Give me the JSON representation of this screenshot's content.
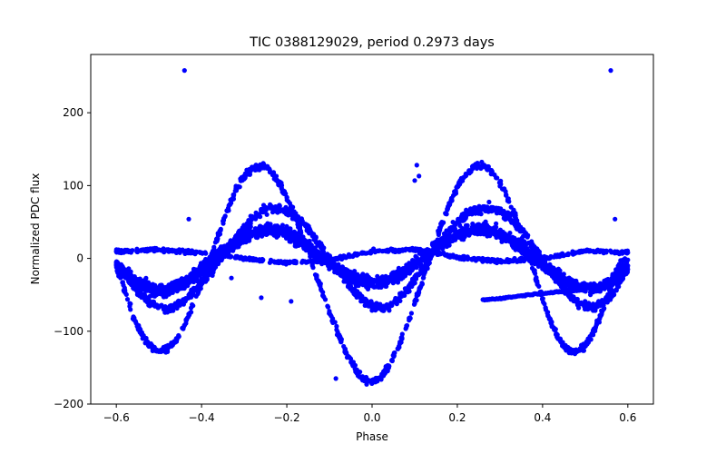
{
  "chart_data": {
    "type": "scatter",
    "title": "TIC 0388129029, period 0.2973 days",
    "xlabel": "Phase",
    "ylabel": "Normalized PDC flux",
    "xlim": [
      -0.66,
      0.66
    ],
    "ylim": [
      -200,
      280
    ],
    "xticks": [
      -0.6,
      -0.4,
      -0.2,
      0.0,
      0.2,
      0.4,
      0.6
    ],
    "xtick_labels": [
      "−0.6",
      "−0.4",
      "−0.2",
      "0.0",
      "0.2",
      "0.4",
      "0.6"
    ],
    "yticks": [
      -200,
      -100,
      0,
      100,
      200
    ],
    "ytick_labels": [
      "−200",
      "−100",
      "0",
      "100",
      "200"
    ],
    "grid": false,
    "marker_color": "#0000ff",
    "series": [
      {
        "description": "outer high-amplitude cycle",
        "amplitude": 125,
        "phase_peak": 0.26,
        "x": [
          -0.6,
          -0.58,
          -0.56,
          -0.54,
          -0.52,
          -0.5,
          -0.48,
          -0.46,
          -0.44,
          -0.42,
          -0.4,
          -0.38,
          -0.36,
          -0.34,
          -0.32,
          -0.3,
          -0.28,
          -0.26,
          -0.24,
          -0.22,
          -0.2,
          -0.18,
          -0.16,
          -0.14,
          -0.12,
          -0.1,
          -0.08,
          -0.06,
          -0.04,
          -0.02,
          0.0,
          0.02,
          0.04,
          0.06,
          0.08,
          0.1,
          0.12,
          0.14,
          0.16,
          0.18,
          0.2,
          0.22,
          0.24,
          0.26,
          0.28,
          0.3,
          0.32,
          0.34,
          0.36,
          0.38,
          0.4,
          0.42,
          0.44,
          0.46,
          0.48,
          0.5,
          0.52,
          0.54,
          0.56,
          0.58,
          0.6
        ],
        "y": [
          -10,
          -45,
          -80,
          -105,
          -120,
          -128,
          -125,
          -112,
          -92,
          -65,
          -35,
          -2,
          32,
          65,
          93,
          113,
          124,
          127,
          121,
          106,
          84,
          57,
          26,
          -8,
          -42,
          -75,
          -103,
          -130,
          -152,
          -166,
          -170,
          -164,
          -148,
          -124,
          -95,
          -62,
          -27,
          8,
          42,
          72,
          98,
          116,
          126,
          128,
          121,
          105,
          82,
          52,
          18,
          -18,
          -55,
          -88,
          -112,
          -126,
          -128,
          -120,
          -100,
          -72,
          -40,
          -8,
          -2
        ]
      },
      {
        "description": "middle mid-amplitude cycle",
        "amplitude": 70,
        "phase_peak": 0.26,
        "x": [
          -0.6,
          -0.56,
          -0.52,
          -0.48,
          -0.44,
          -0.4,
          -0.36,
          -0.32,
          -0.28,
          -0.24,
          -0.2,
          -0.16,
          -0.12,
          -0.08,
          -0.04,
          0.0,
          0.04,
          0.08,
          0.12,
          0.16,
          0.2,
          0.24,
          0.28,
          0.32,
          0.36,
          0.4,
          0.44,
          0.48,
          0.52,
          0.56,
          0.6
        ],
        "y": [
          -5,
          -40,
          -62,
          -70,
          -58,
          -35,
          -5,
          28,
          55,
          70,
          66,
          48,
          18,
          -15,
          -48,
          -68,
          -66,
          -45,
          -12,
          22,
          50,
          66,
          70,
          58,
          32,
          -2,
          -35,
          -60,
          -68,
          -52,
          -15
        ]
      },
      {
        "description": "core low-amplitude band",
        "amplitude": 45,
        "phase_peak": 0.26,
        "x": [
          -0.6,
          -0.56,
          -0.52,
          -0.48,
          -0.44,
          -0.4,
          -0.36,
          -0.32,
          -0.28,
          -0.24,
          -0.2,
          -0.16,
          -0.12,
          -0.08,
          -0.04,
          0.0,
          0.04,
          0.08,
          0.12,
          0.16,
          0.2,
          0.24,
          0.28,
          0.32,
          0.36,
          0.4,
          0.44,
          0.48,
          0.52,
          0.56,
          0.6
        ],
        "y": [
          -8,
          -30,
          -42,
          -44,
          -35,
          -15,
          5,
          22,
          35,
          40,
          35,
          20,
          2,
          -14,
          -28,
          -34,
          -30,
          -16,
          2,
          20,
          33,
          40,
          38,
          28,
          10,
          -8,
          -25,
          -38,
          -42,
          -32,
          -10
        ]
      },
      {
        "description": "flat band near zero",
        "amplitude": 12,
        "phase_peak": -0.48,
        "x": [
          -0.6,
          -0.5,
          -0.4,
          -0.3,
          -0.2,
          -0.1,
          0.0,
          0.1,
          0.2,
          0.3,
          0.4,
          0.5,
          0.6
        ],
        "y": [
          10,
          12,
          8,
          0,
          -6,
          -2,
          10,
          12,
          2,
          -4,
          0,
          10,
          8
        ]
      },
      {
        "description": "linear streak",
        "x": [
          0.26,
          0.3,
          0.34,
          0.38,
          0.42,
          0.46,
          0.5
        ],
        "y": [
          -57,
          -55,
          -52,
          -49,
          -47,
          -45,
          -43
        ]
      },
      {
        "description": "outliers",
        "x": [
          -0.44,
          0.56,
          -0.26,
          -0.19,
          0.105,
          0.11,
          0.1,
          -0.33,
          -0.085,
          0.15,
          -0.43,
          0.57
        ],
        "y": [
          258,
          258,
          -54,
          -59,
          128,
          113,
          107,
          -27,
          -165,
          13,
          54,
          54
        ]
      }
    ]
  }
}
